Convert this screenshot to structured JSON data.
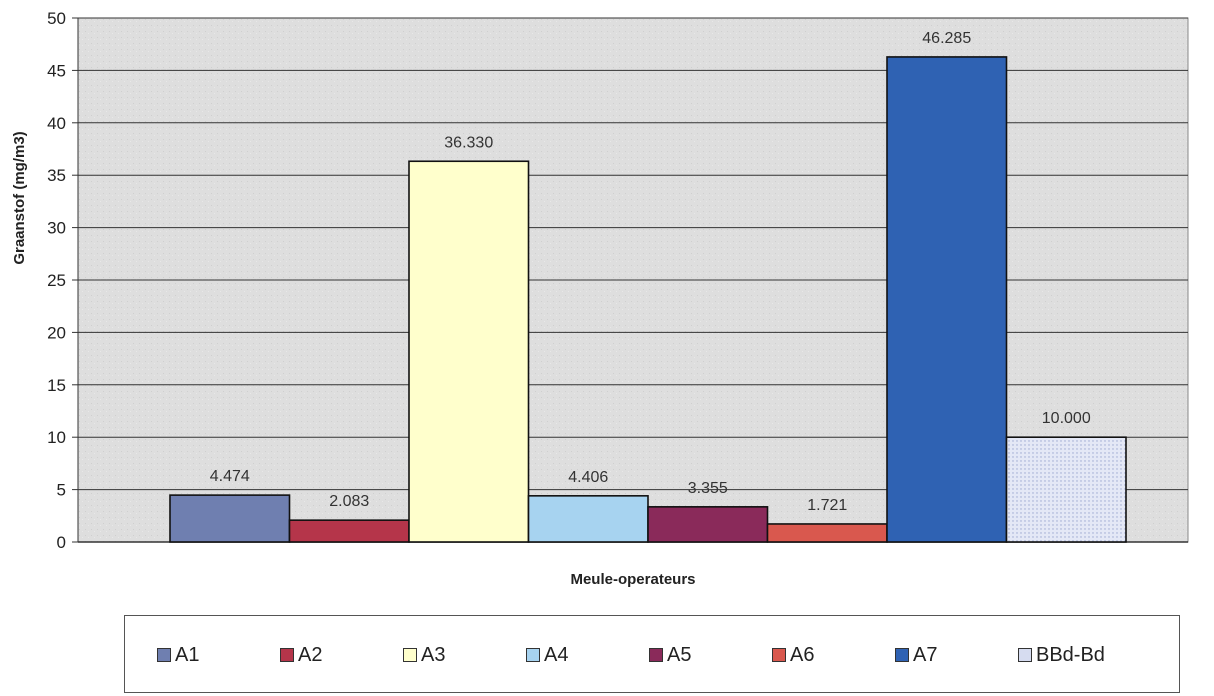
{
  "chart_data": {
    "type": "bar",
    "title": "",
    "xlabel": "Meule-operateurs",
    "ylabel": "Graanstof (mg/m3)",
    "ylim": [
      0,
      50
    ],
    "yticks": [
      0,
      5,
      10,
      15,
      20,
      25,
      30,
      35,
      40,
      45,
      50
    ],
    "grid": true,
    "legend_position": "bottom",
    "series": [
      {
        "name": "A1",
        "value": 4.474,
        "label": "4.474",
        "color": "#6f7fb0",
        "pattern": "speckle"
      },
      {
        "name": "A2",
        "value": 2.083,
        "label": "2.083",
        "color": "#b5354a",
        "pattern": "speckle"
      },
      {
        "name": "A3",
        "value": 36.33,
        "label": "36.330",
        "color": "#ffffcc",
        "pattern": "none"
      },
      {
        "name": "A4",
        "value": 4.406,
        "label": "4.406",
        "color": "#a7d3f0",
        "pattern": "none"
      },
      {
        "name": "A5",
        "value": 3.355,
        "label": "3.355",
        "color": "#8a2a5a",
        "pattern": "speckle"
      },
      {
        "name": "A6",
        "value": 1.721,
        "label": "1.721",
        "color": "#d9584e",
        "pattern": "none"
      },
      {
        "name": "A7",
        "value": 46.285,
        "label": "46.285",
        "color": "#2f62b3",
        "pattern": "none"
      },
      {
        "name": "BBd-Bd",
        "value": 10.0,
        "label": "10.000",
        "color": "#d6dcf0",
        "pattern": "dots"
      }
    ]
  },
  "colors": {
    "plot_background": "#dedede",
    "gridline": "#333333",
    "bar_outline": "#111111"
  }
}
